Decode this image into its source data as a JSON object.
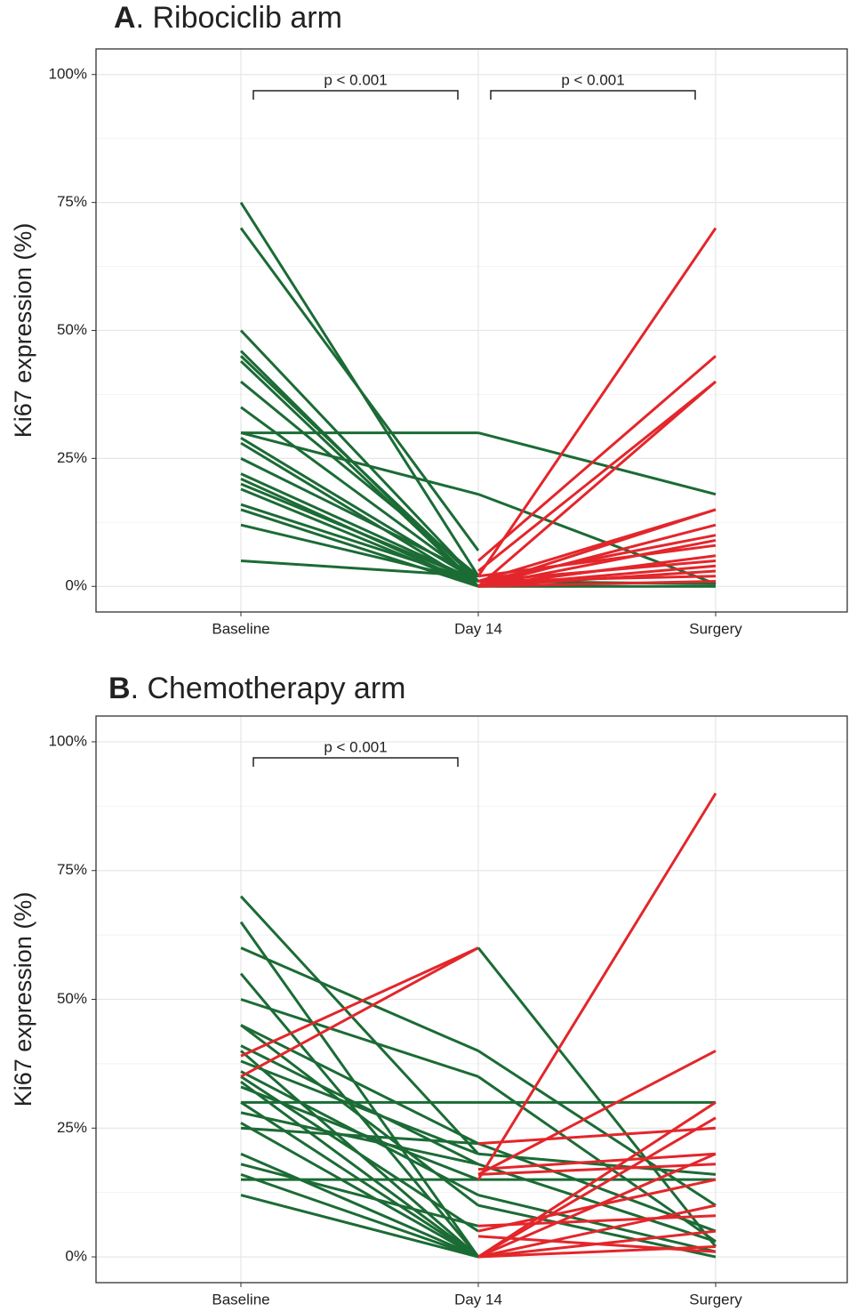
{
  "chart_data": [
    {
      "type": "line",
      "title_letter": "A",
      "title": ". Ribociclib arm",
      "y_label": "Ki67 expression (%)",
      "categories": [
        "Baseline",
        "Day 14",
        "Surgery"
      ],
      "ylim": [
        -5,
        105
      ],
      "yticks": [
        {
          "value": 0,
          "label": "0%"
        },
        {
          "value": 25,
          "label": "25%"
        },
        {
          "value": 50,
          "label": "50%"
        },
        {
          "value": 75,
          "label": "75%"
        },
        {
          "value": 100,
          "label": "100%"
        }
      ],
      "grid": true,
      "annotations": [
        "p < 0.001",
        "p < 0.001"
      ],
      "series": [
        {
          "color": "#1b6b35",
          "values": [
            75,
            2,
            null
          ]
        },
        {
          "color": "#1b6b35",
          "values": [
            70,
            7,
            null
          ]
        },
        {
          "color": "#1b6b35",
          "values": [
            50,
            1,
            null
          ]
        },
        {
          "color": "#1b6b35",
          "values": [
            46,
            0,
            null
          ]
        },
        {
          "color": "#1b6b35",
          "values": [
            45,
            1,
            null
          ]
        },
        {
          "color": "#1b6b35",
          "values": [
            44,
            0,
            null
          ]
        },
        {
          "color": "#1b6b35",
          "values": [
            40,
            2,
            null
          ]
        },
        {
          "color": "#1b6b35",
          "values": [
            35,
            1,
            null
          ]
        },
        {
          "color": "#1b6b35",
          "values": [
            30,
            30,
            null
          ]
        },
        {
          "color": "#1b6b35",
          "values": [
            30,
            18,
            null
          ]
        },
        {
          "color": "#1b6b35",
          "values": [
            29,
            1,
            null
          ]
        },
        {
          "color": "#1b6b35",
          "values": [
            28,
            0,
            null
          ]
        },
        {
          "color": "#1b6b35",
          "values": [
            25,
            2,
            null
          ]
        },
        {
          "color": "#1b6b35",
          "values": [
            22,
            1,
            null
          ]
        },
        {
          "color": "#1b6b35",
          "values": [
            21,
            0,
            null
          ]
        },
        {
          "color": "#1b6b35",
          "values": [
            20,
            1,
            null
          ]
        },
        {
          "color": "#1b6b35",
          "values": [
            19,
            0,
            null
          ]
        },
        {
          "color": "#1b6b35",
          "values": [
            16,
            1,
            null
          ]
        },
        {
          "color": "#1b6b35",
          "values": [
            15,
            0,
            null
          ]
        },
        {
          "color": "#1b6b35",
          "values": [
            12,
            1,
            null
          ]
        },
        {
          "color": "#1b6b35",
          "values": [
            5,
            2,
            null
          ]
        },
        {
          "color": "#1b6b35",
          "values": [
            null,
            30,
            18
          ]
        },
        {
          "color": "#1b6b35",
          "values": [
            null,
            18,
            0.5
          ]
        },
        {
          "color": "#1b6b35",
          "values": [
            null,
            0,
            0
          ]
        },
        {
          "color": "#1b6b35",
          "values": [
            null,
            1,
            0.5
          ]
        },
        {
          "color": "#e3262b",
          "values": [
            null,
            2,
            70
          ]
        },
        {
          "color": "#e3262b",
          "values": [
            null,
            5,
            45
          ]
        },
        {
          "color": "#e3262b",
          "values": [
            null,
            0,
            40
          ]
        },
        {
          "color": "#e3262b",
          "values": [
            null,
            3,
            40
          ]
        },
        {
          "color": "#e3262b",
          "values": [
            null,
            0,
            15
          ]
        },
        {
          "color": "#e3262b",
          "values": [
            null,
            1,
            15
          ]
        },
        {
          "color": "#e3262b",
          "values": [
            null,
            0,
            12
          ]
        },
        {
          "color": "#e3262b",
          "values": [
            null,
            1,
            10
          ]
        },
        {
          "color": "#e3262b",
          "values": [
            null,
            0,
            9
          ]
        },
        {
          "color": "#e3262b",
          "values": [
            null,
            2,
            8
          ]
        },
        {
          "color": "#e3262b",
          "values": [
            null,
            0,
            6
          ]
        },
        {
          "color": "#e3262b",
          "values": [
            null,
            1,
            5
          ]
        },
        {
          "color": "#e3262b",
          "values": [
            null,
            0,
            4
          ]
        },
        {
          "color": "#e3262b",
          "values": [
            null,
            0,
            3
          ]
        },
        {
          "color": "#e3262b",
          "values": [
            null,
            1,
            2
          ]
        },
        {
          "color": "#e3262b",
          "values": [
            null,
            0,
            1
          ]
        }
      ]
    },
    {
      "type": "line",
      "title_letter": "B",
      "title": ". Chemotherapy arm",
      "y_label": "Ki67 expression (%)",
      "categories": [
        "Baseline",
        "Day 14",
        "Surgery"
      ],
      "ylim": [
        -5,
        105
      ],
      "yticks": [
        {
          "value": 0,
          "label": "0%"
        },
        {
          "value": 25,
          "label": "25%"
        },
        {
          "value": 50,
          "label": "50%"
        },
        {
          "value": 75,
          "label": "75%"
        },
        {
          "value": 100,
          "label": "100%"
        }
      ],
      "grid": true,
      "annotations": [
        "p < 0.001"
      ],
      "series": [
        {
          "color": "#1b6b35",
          "values": [
            70,
            20,
            null
          ]
        },
        {
          "color": "#1b6b35",
          "values": [
            65,
            0,
            null
          ]
        },
        {
          "color": "#1b6b35",
          "values": [
            60,
            40,
            null
          ]
        },
        {
          "color": "#1b6b35",
          "values": [
            55,
            0,
            null
          ]
        },
        {
          "color": "#1b6b35",
          "values": [
            50,
            35,
            null
          ]
        },
        {
          "color": "#1b6b35",
          "values": [
            45,
            22,
            null
          ]
        },
        {
          "color": "#1b6b35",
          "values": [
            45,
            10,
            null
          ]
        },
        {
          "color": "#1b6b35",
          "values": [
            41,
            18,
            null
          ]
        },
        {
          "color": "#1b6b35",
          "values": [
            40,
            0,
            null
          ]
        },
        {
          "color": "#1b6b35",
          "values": [
            38,
            20,
            null
          ]
        },
        {
          "color": "#1b6b35",
          "values": [
            36,
            12,
            null
          ]
        },
        {
          "color": "#1b6b35",
          "values": [
            35,
            5,
            null
          ]
        },
        {
          "color": "#1b6b35",
          "values": [
            34,
            0,
            null
          ]
        },
        {
          "color": "#1b6b35",
          "values": [
            33,
            15,
            null
          ]
        },
        {
          "color": "#1b6b35",
          "values": [
            30,
            30,
            null
          ]
        },
        {
          "color": "#1b6b35",
          "values": [
            30,
            0,
            null
          ]
        },
        {
          "color": "#1b6b35",
          "values": [
            28,
            18,
            null
          ]
        },
        {
          "color": "#1b6b35",
          "values": [
            26,
            0,
            null
          ]
        },
        {
          "color": "#1b6b35",
          "values": [
            25,
            22,
            null
          ]
        },
        {
          "color": "#1b6b35",
          "values": [
            20,
            0,
            null
          ]
        },
        {
          "color": "#1b6b35",
          "values": [
            18,
            6,
            null
          ]
        },
        {
          "color": "#1b6b35",
          "values": [
            16,
            0,
            null
          ]
        },
        {
          "color": "#1b6b35",
          "values": [
            15,
            15,
            null
          ]
        },
        {
          "color": "#1b6b35",
          "values": [
            12,
            0,
            null
          ]
        },
        {
          "color": "#e3262b",
          "values": [
            39,
            60,
            null
          ]
        },
        {
          "color": "#e3262b",
          "values": [
            35,
            60,
            null
          ]
        },
        {
          "color": "#1b6b35",
          "values": [
            null,
            60,
            2
          ]
        },
        {
          "color": "#1b6b35",
          "values": [
            null,
            40,
            10
          ]
        },
        {
          "color": "#1b6b35",
          "values": [
            null,
            35,
            3
          ]
        },
        {
          "color": "#1b6b35",
          "values": [
            null,
            30,
            30
          ]
        },
        {
          "color": "#1b6b35",
          "values": [
            null,
            22,
            5
          ]
        },
        {
          "color": "#1b6b35",
          "values": [
            null,
            20,
            16
          ]
        },
        {
          "color": "#1b6b35",
          "values": [
            null,
            18,
            3
          ]
        },
        {
          "color": "#1b6b35",
          "values": [
            null,
            15,
            15
          ]
        },
        {
          "color": "#1b6b35",
          "values": [
            null,
            12,
            1
          ]
        },
        {
          "color": "#1b6b35",
          "values": [
            null,
            10,
            0
          ]
        },
        {
          "color": "#e3262b",
          "values": [
            null,
            15,
            90
          ]
        },
        {
          "color": "#e3262b",
          "values": [
            null,
            16,
            40
          ]
        },
        {
          "color": "#e3262b",
          "values": [
            null,
            0,
            30
          ]
        },
        {
          "color": "#e3262b",
          "values": [
            null,
            0,
            27
          ]
        },
        {
          "color": "#e3262b",
          "values": [
            null,
            22,
            25
          ]
        },
        {
          "color": "#e3262b",
          "values": [
            null,
            0,
            20
          ]
        },
        {
          "color": "#e3262b",
          "values": [
            null,
            17,
            20
          ]
        },
        {
          "color": "#e3262b",
          "values": [
            null,
            16,
            18
          ]
        },
        {
          "color": "#e3262b",
          "values": [
            null,
            5,
            15
          ]
        },
        {
          "color": "#e3262b",
          "values": [
            null,
            0,
            10
          ]
        },
        {
          "color": "#e3262b",
          "values": [
            null,
            6,
            8
          ]
        },
        {
          "color": "#e3262b",
          "values": [
            null,
            0,
            5
          ]
        },
        {
          "color": "#e3262b",
          "values": [
            null,
            0,
            2
          ]
        },
        {
          "color": "#e3262b",
          "values": [
            null,
            4,
            1
          ]
        }
      ]
    }
  ]
}
